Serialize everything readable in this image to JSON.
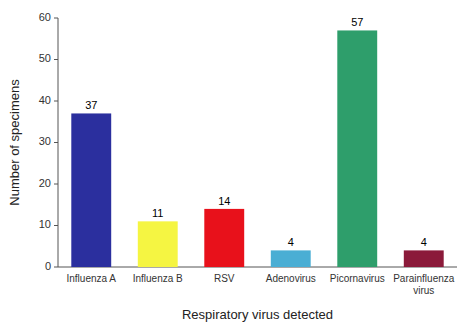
{
  "chart_data": {
    "type": "bar",
    "categories": [
      "Influenza A",
      "Influenza B",
      "RSV",
      "Adenovirus",
      "Picornavirus",
      "Parainfluenza\nvirus"
    ],
    "values": [
      37,
      11,
      14,
      4,
      57,
      4
    ],
    "colors": [
      "#2b2f9e",
      "#f5f542",
      "#e8111b",
      "#4aaed4",
      "#2e9e6b",
      "#8b1a3a"
    ],
    "xlabel": "Respiratory virus detected",
    "ylabel": "Number of specimens",
    "ylim": [
      0,
      60
    ],
    "yticks": [
      0,
      10,
      20,
      30,
      40,
      50,
      60
    ],
    "grid": false,
    "data_labels": true
  }
}
